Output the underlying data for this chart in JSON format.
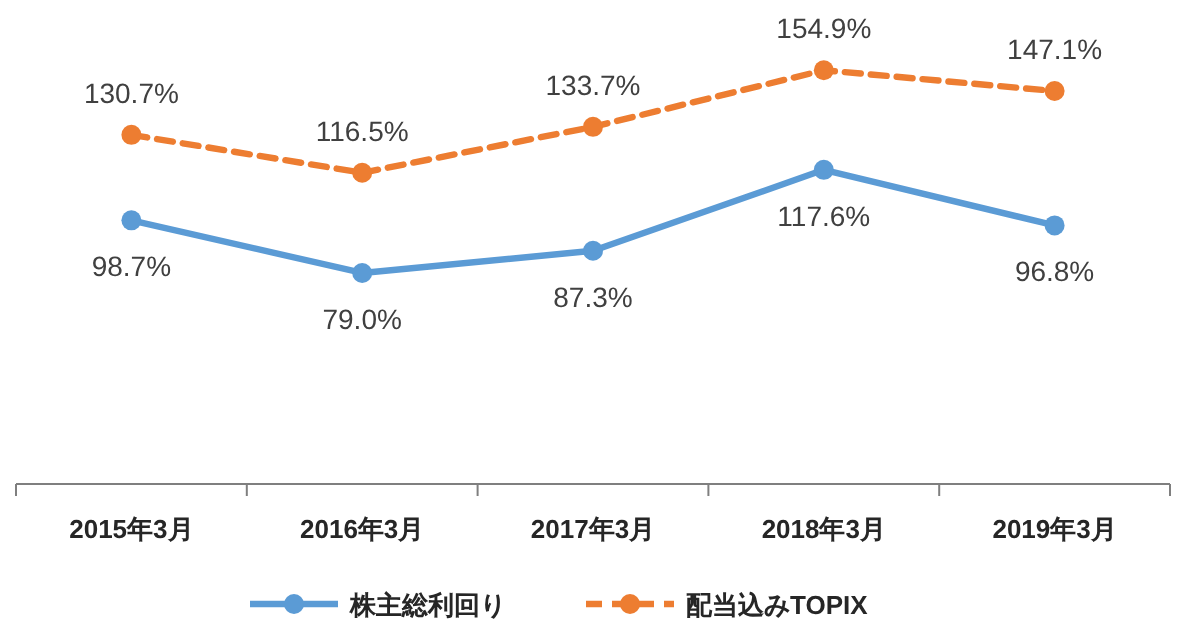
{
  "chart_data": {
    "type": "line",
    "categories": [
      "2015年3月",
      "2016年3月",
      "2017年3月",
      "2018年3月",
      "2019年3月"
    ],
    "series": [
      {
        "name": "株主総利回り",
        "color": "#5b9bd5",
        "values": [
          98.7,
          79.0,
          87.3,
          117.6,
          96.8
        ],
        "value_labels": [
          "98.7%",
          "79.0%",
          "87.3%",
          "117.6%",
          "96.8%"
        ],
        "line_style": "solid",
        "marker": "circle"
      },
      {
        "name": "配当込みTOPIX",
        "color": "#ed7d31",
        "values": [
          130.7,
          116.5,
          133.7,
          154.9,
          147.1
        ],
        "value_labels": [
          "130.7%",
          "116.5%",
          "133.7%",
          "154.9%",
          "147.1%"
        ],
        "line_style": "dashed",
        "marker": "circle"
      }
    ],
    "legend": "bottom"
  }
}
